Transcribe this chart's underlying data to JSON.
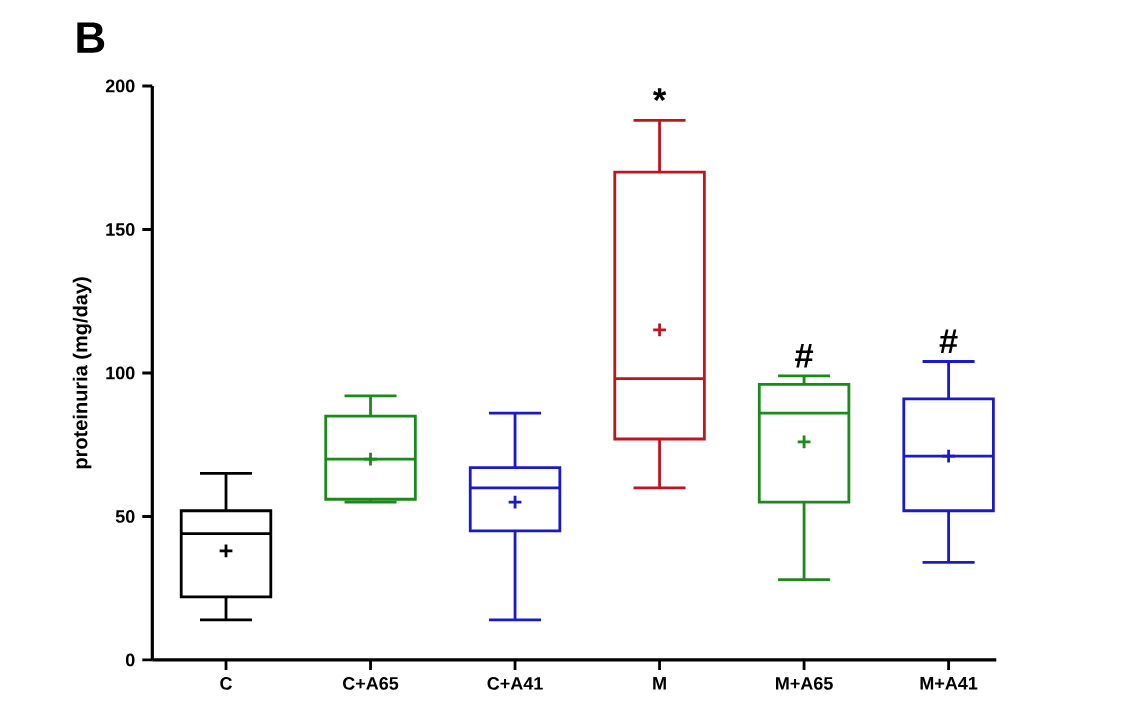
{
  "chart_data": {
    "type": "box",
    "title": "B",
    "ylabel": "proteinuria (mg/day)",
    "categories": [
      "C",
      "C+A65",
      "C+A41",
      "M",
      "M+A65",
      "M+A41"
    ],
    "colors": [
      "#000000",
      "#1a8a1a",
      "#1a1acc",
      "#c0141e",
      "#1a8a1a",
      "#1a1acc"
    ],
    "boxes": [
      {
        "low": 14,
        "q1": 22,
        "median": 44,
        "q3": 52,
        "high": 65,
        "mean": 38
      },
      {
        "low": 55,
        "q1": 56,
        "median": 70,
        "q3": 85,
        "high": 92,
        "mean": 70
      },
      {
        "low": 14,
        "q1": 45,
        "median": 60,
        "q3": 67,
        "high": 86,
        "mean": 55
      },
      {
        "low": 60,
        "q1": 77,
        "median": 98,
        "q3": 170,
        "high": 188,
        "mean": 115
      },
      {
        "low": 28,
        "q1": 55,
        "median": 86,
        "q3": 96,
        "high": 99,
        "mean": 76
      },
      {
        "low": 34,
        "q1": 52,
        "median": 71,
        "q3": 91,
        "high": 104,
        "mean": 71
      }
    ],
    "annotations": [
      "*",
      "#",
      "#"
    ],
    "ylim": [
      0,
      200
    ],
    "yticks": [
      0,
      50,
      100,
      150,
      200
    ],
    "grid": false
  }
}
